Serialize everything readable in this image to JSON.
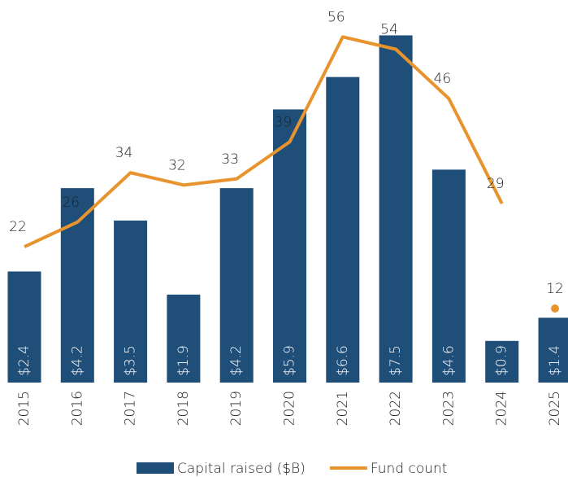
{
  "chart_data": {
    "type": "bar",
    "categories": [
      "2015",
      "2016",
      "2017",
      "2018",
      "2019",
      "2020",
      "2021",
      "2022",
      "2023",
      "2024",
      "2025"
    ],
    "ylim": [
      0,
      8
    ],
    "y2lim": [
      0,
      60
    ],
    "series": [
      {
        "name": "Capital raised ($B)",
        "type": "bar",
        "color": "#1f4e79",
        "values": [
          2.4,
          4.2,
          3.5,
          1.9,
          4.2,
          5.9,
          6.6,
          7.5,
          4.6,
          0.9,
          1.4
        ],
        "value_labels": [
          "$2.4",
          "$4.2",
          "$3.5",
          "$1.9",
          "$4.2",
          "$5.9",
          "$6.6",
          "$7.5",
          "$4.6",
          "$0.9",
          "$1.4"
        ]
      },
      {
        "name": "Fund count",
        "type": "line",
        "axis": "y2",
        "color": "#e8942e",
        "values": [
          22,
          26,
          34,
          32,
          33,
          39,
          56,
          54,
          46,
          29,
          12
        ],
        "dot_from": "2025"
      }
    ]
  }
}
